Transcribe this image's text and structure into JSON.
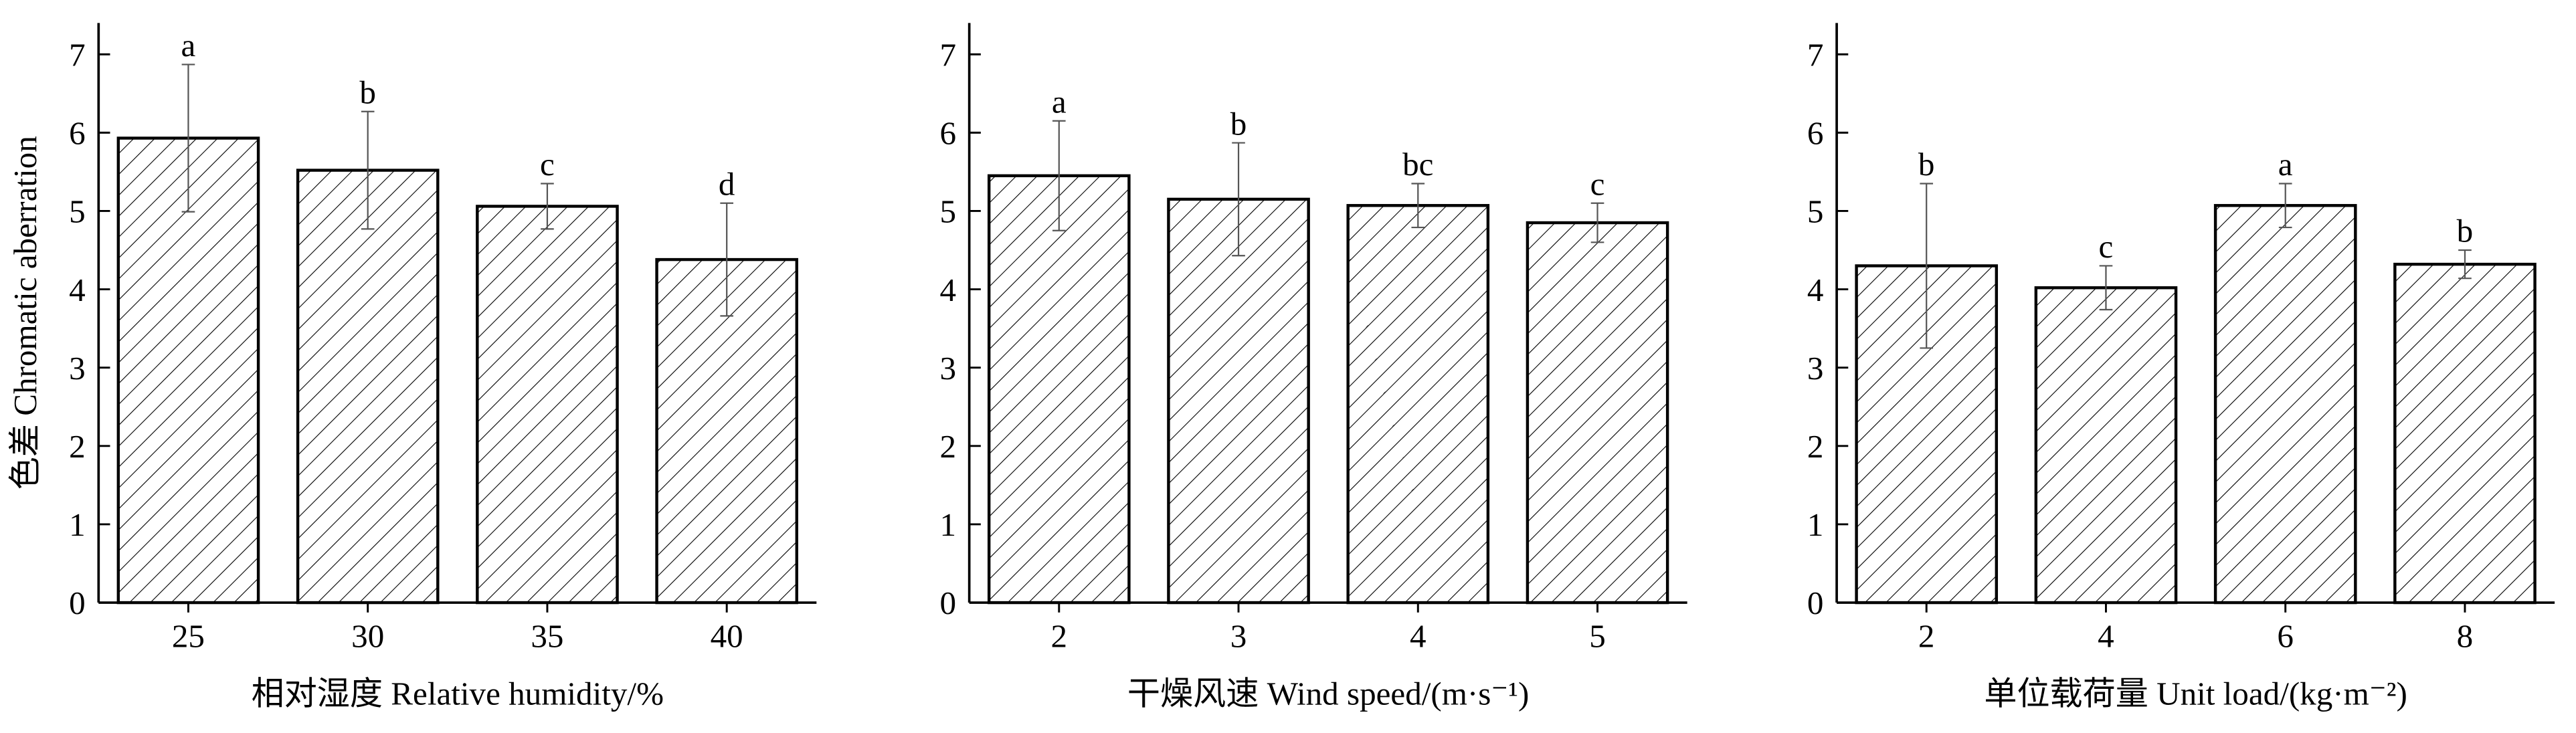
{
  "chart_data": [
    {
      "type": "bar",
      "y_label": "色差 Chromatic aberration",
      "x_label": "相对湿度 Relative humidity/%",
      "categories": [
        "25",
        "30",
        "35",
        "40"
      ],
      "values": [
        5.93,
        5.52,
        5.06,
        4.38
      ],
      "errors": [
        0.94,
        0.75,
        0.29,
        0.72
      ],
      "annotations": [
        "a",
        "b",
        "c",
        "d"
      ],
      "ylim": [
        0,
        7.4
      ],
      "yticks": [
        0,
        1,
        2,
        3,
        4,
        5,
        6,
        7
      ],
      "color": "#000000"
    },
    {
      "type": "bar",
      "x_label": "干燥风速 Wind speed/(m·s⁻¹)",
      "categories": [
        "2",
        "3",
        "4",
        "5"
      ],
      "values": [
        5.45,
        5.15,
        5.07,
        4.85
      ],
      "errors": [
        0.7,
        0.72,
        0.28,
        0.25
      ],
      "annotations": [
        "a",
        "b",
        "bc",
        "c"
      ],
      "ylim": [
        0,
        7.4
      ],
      "yticks": [
        0,
        1,
        2,
        3,
        4,
        5,
        6,
        7
      ],
      "color": "#000000"
    },
    {
      "type": "bar",
      "x_label": "单位载荷量 Unit load/(kg·m⁻²)",
      "categories": [
        "2",
        "4",
        "6",
        "8"
      ],
      "values": [
        4.3,
        4.02,
        5.07,
        4.32
      ],
      "errors": [
        1.05,
        0.28,
        0.28,
        0.18
      ],
      "annotations": [
        "b",
        "c",
        "a",
        "b"
      ],
      "ylim": [
        0,
        7.4
      ],
      "yticks": [
        0,
        1,
        2,
        3,
        4,
        5,
        6,
        7
      ],
      "color": "#000000"
    }
  ]
}
